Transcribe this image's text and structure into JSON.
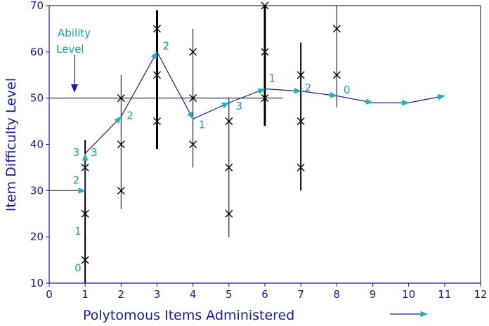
{
  "chart_data": {
    "type": "scatter",
    "xlabel": "Polytomous Items Administered",
    "ylabel": "Item Difficulty Level",
    "xlim": [
      0,
      12
    ],
    "ylim": [
      10,
      70
    ],
    "x_ticks": [
      0,
      1,
      2,
      3,
      4,
      5,
      6,
      7,
      8,
      9,
      10,
      11,
      12
    ],
    "y_ticks": [
      10,
      20,
      30,
      40,
      50,
      60,
      70
    ],
    "ability_label": [
      "Ability",
      "Level"
    ],
    "reference_line_y": 50,
    "colors": {
      "axis": "#1a1a9e",
      "path": "#1a1a9e",
      "arrow": "#1fb5b5",
      "marker": "#000000",
      "text": "#1aa3a3"
    },
    "items": [
      {
        "x": 1,
        "range": [
          10,
          41
        ],
        "category_difficulties": [
          15,
          25,
          35
        ]
      },
      {
        "x": 2,
        "range": [
          26,
          55
        ],
        "category_difficulties": [
          30,
          40,
          50
        ]
      },
      {
        "x": 3,
        "range": [
          39,
          69
        ],
        "category_difficulties": [
          45,
          55,
          65
        ]
      },
      {
        "x": 4,
        "range": [
          35,
          65
        ],
        "category_difficulties": [
          40,
          50,
          60
        ]
      },
      {
        "x": 5,
        "range": [
          20,
          50
        ],
        "category_difficulties": [
          25,
          35,
          45
        ]
      },
      {
        "x": 6,
        "range": [
          44,
          70
        ],
        "category_difficulties": [
          50,
          60,
          70
        ]
      },
      {
        "x": 7,
        "range": [
          30,
          62
        ],
        "category_difficulties": [
          35,
          45,
          55
        ]
      },
      {
        "x": 8,
        "range": [
          48,
          70
        ],
        "category_difficulties": [
          55,
          65
        ]
      }
    ],
    "ability_path": [
      {
        "x": 0,
        "y": 30
      },
      {
        "x": 1,
        "y": 30
      },
      {
        "x": 1,
        "y": 38
      },
      {
        "x": 2,
        "y": 46
      },
      {
        "x": 3,
        "y": 60
      },
      {
        "x": 4,
        "y": 45.5
      },
      {
        "x": 5,
        "y": 49
      },
      {
        "x": 6,
        "y": 52
      },
      {
        "x": 7,
        "y": 51.5
      },
      {
        "x": 8,
        "y": 50.5
      },
      {
        "x": 9,
        "y": 49
      },
      {
        "x": 10,
        "y": 49
      },
      {
        "x": 11,
        "y": 50.5
      }
    ],
    "response_labels": [
      {
        "text": "0",
        "x": 0.8,
        "y": 12.5
      },
      {
        "text": "1",
        "x": 0.8,
        "y": 20.5
      },
      {
        "text": "2",
        "x": 0.75,
        "y": 31.5
      },
      {
        "text": "3",
        "x": 0.75,
        "y": 37.5
      },
      {
        "text": "3",
        "x": 1.25,
        "y": 37.5
      },
      {
        "text": "2",
        "x": 2.25,
        "y": 45.5
      },
      {
        "text": "2",
        "x": 3.25,
        "y": 60.5
      },
      {
        "text": "1",
        "x": 4.25,
        "y": 43.5
      },
      {
        "text": "3",
        "x": 5.28,
        "y": 47.5
      },
      {
        "text": "1",
        "x": 6.2,
        "y": 53.5
      },
      {
        "text": "2",
        "x": 7.2,
        "y": 51.5
      },
      {
        "text": "0",
        "x": 8.28,
        "y": 51
      }
    ]
  }
}
